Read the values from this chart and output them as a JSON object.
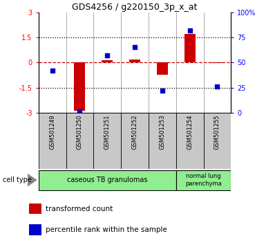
{
  "title": "GDS4256 / g220150_3p_x_at",
  "samples": [
    "GSM501249",
    "GSM501250",
    "GSM501251",
    "GSM501252",
    "GSM501253",
    "GSM501254",
    "GSM501255"
  ],
  "transformed_count": [
    0.0,
    -2.9,
    0.12,
    0.18,
    -0.75,
    1.7,
    -0.05
  ],
  "percentile_rank": [
    42,
    1,
    57,
    65,
    22,
    82,
    26
  ],
  "ylim_left": [
    -3,
    3
  ],
  "ylim_right": [
    0,
    100
  ],
  "yticks_left": [
    -3,
    -1.5,
    0,
    1.5,
    3
  ],
  "yticks_right": [
    0,
    25,
    50,
    75,
    100
  ],
  "ytick_labels_right": [
    "0",
    "25",
    "50",
    "75",
    "100%"
  ],
  "bar_color": "#CC0000",
  "dot_color": "#0000CC",
  "zero_line_color": "#CC0000",
  "hline_color": "black",
  "background_color": "white",
  "plot_bg_color": "white",
  "sample_bg_color": "#C8C8C8",
  "cell_green": "#90EE90",
  "legend_red": "transformed count",
  "legend_blue": "percentile rank within the sample"
}
